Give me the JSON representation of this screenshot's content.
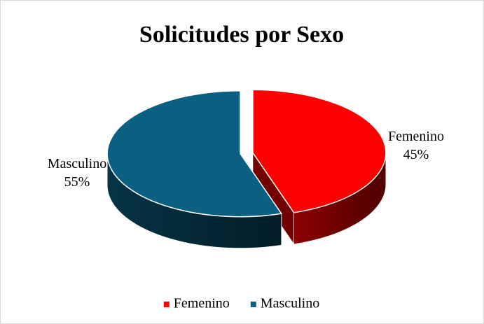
{
  "chart_data": {
    "type": "pie",
    "title": "Solicitudes por Sexo",
    "categories": [
      "Femenino",
      "Masculino"
    ],
    "values": [
      45,
      55
    ],
    "value_labels": [
      "45%",
      "55%"
    ],
    "colors": [
      "#ff0000",
      "#0b5f80"
    ],
    "legend": "bottom"
  }
}
